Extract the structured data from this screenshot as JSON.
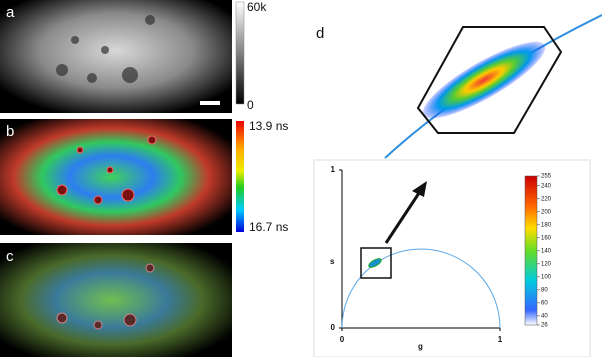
{
  "panels": {
    "a": {
      "label": "a",
      "colorbar_max": "60k",
      "colorbar_min": "0"
    },
    "b": {
      "label": "b",
      "colorbar_top": "13.9 ns",
      "colorbar_bottom": "16.7 ns"
    },
    "c": {
      "label": "c"
    },
    "d": {
      "label": "d"
    }
  },
  "phasor": {
    "x_label": "g",
    "y_label": "s",
    "xlim": [
      0,
      1
    ],
    "ylim": [
      0,
      1
    ],
    "xticks": [
      0,
      1
    ],
    "yticks": [
      0,
      1
    ],
    "colorbar_lim": [
      26,
      255
    ],
    "colorbar_ticks": [
      255,
      240,
      220,
      200,
      180,
      160,
      140,
      120,
      100,
      80,
      60,
      40,
      26
    ]
  }
}
